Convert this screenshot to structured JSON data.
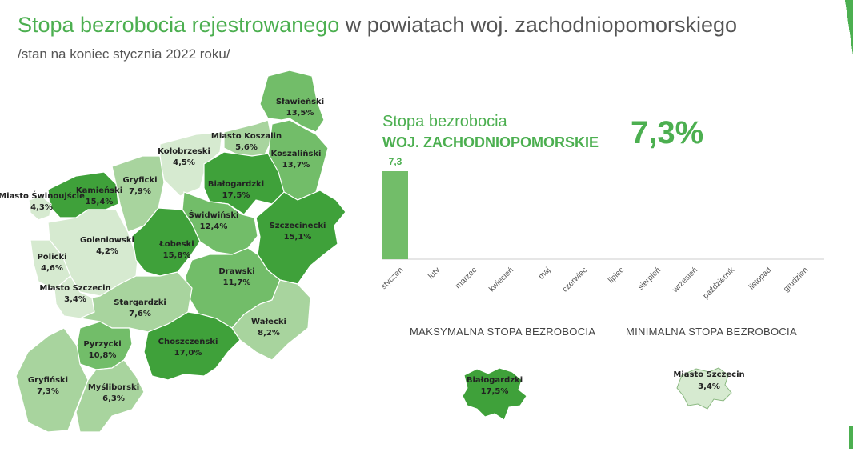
{
  "header": {
    "title_highlight": "Stopa bezrobocia rejestrowanego",
    "title_rest": " w powiatach woj. zachodniopomorskiego",
    "subtitle": "/stan na koniec stycznia 2022 roku/"
  },
  "colors": {
    "accent": "#4caf50",
    "level_lightest": "#d6ead0",
    "level_light": "#a8d49e",
    "level_medium": "#72bd69",
    "level_dark": "#3fa13a",
    "background": "#ffffff"
  },
  "map": {
    "regions": [
      {
        "name": "Sławieński",
        "value": "13,5%",
        "level": "medium"
      },
      {
        "name": "Miasto Koszalin",
        "value": "5,6%",
        "level": "light"
      },
      {
        "name": "Koszaliński",
        "value": "13,7%",
        "level": "medium"
      },
      {
        "name": "Kołobrzeski",
        "value": "4,5%",
        "level": "lightest"
      },
      {
        "name": "Gryficki",
        "value": "7,9%",
        "level": "light"
      },
      {
        "name": "Białogardzki",
        "value": "17,5%",
        "level": "dark"
      },
      {
        "name": "Kamieński",
        "value": "15,4%",
        "level": "dark"
      },
      {
        "name": "Miasto Świnoujście",
        "value": "4,3%",
        "level": "lightest"
      },
      {
        "name": "Świdwiński",
        "value": "12,4%",
        "level": "medium"
      },
      {
        "name": "Szczecinecki",
        "value": "15,1%",
        "level": "dark"
      },
      {
        "name": "Goleniowski",
        "value": "4,2%",
        "level": "lightest"
      },
      {
        "name": "Łobeski",
        "value": "15,8%",
        "level": "dark"
      },
      {
        "name": "Policki",
        "value": "4,6%",
        "level": "lightest"
      },
      {
        "name": "Drawski",
        "value": "11,7%",
        "level": "medium"
      },
      {
        "name": "Miasto Szczecin",
        "value": "3,4%",
        "level": "lightest"
      },
      {
        "name": "Stargardzki",
        "value": "7,6%",
        "level": "light"
      },
      {
        "name": "Wałecki",
        "value": "8,2%",
        "level": "light"
      },
      {
        "name": "Pyrzycki",
        "value": "10,8%",
        "level": "medium"
      },
      {
        "name": "Choszczeński",
        "value": "17,0%",
        "level": "dark"
      },
      {
        "name": "Gryfiński",
        "value": "7,3%",
        "level": "light"
      },
      {
        "name": "Myśliborski",
        "value": "6,3%",
        "level": "light"
      }
    ]
  },
  "kpi": {
    "title": "Stopa bezrobocia",
    "subtitle": "WOJ. ZACHODNIOPOMORSKIE",
    "value": "7,3%"
  },
  "chart_data": {
    "type": "bar",
    "categories": [
      "styczeń",
      "luty",
      "marzec",
      "kwiecień",
      "maj",
      "czerwiec",
      "lipiec",
      "sierpień",
      "wrzesień",
      "październik",
      "listopad",
      "grudzień"
    ],
    "values": [
      7.3,
      null,
      null,
      null,
      null,
      null,
      null,
      null,
      null,
      null,
      null,
      null
    ],
    "data_labels": [
      "7,3",
      "",
      "",
      "",
      "",
      "",
      "",
      "",
      "",
      "",
      "",
      ""
    ],
    "ylim": [
      0,
      7.3
    ],
    "grid": false,
    "legend": "none"
  },
  "extremes": {
    "max_label": "MAKSYMALNA STOPA BEZROBOCIA",
    "min_label": "MINIMALNA STOPA BEZROBOCIA",
    "max_region": {
      "name": "Białogardzki",
      "value": "17,5%"
    },
    "min_region": {
      "name": "Miasto Szczecin",
      "value": "3,4%"
    }
  }
}
